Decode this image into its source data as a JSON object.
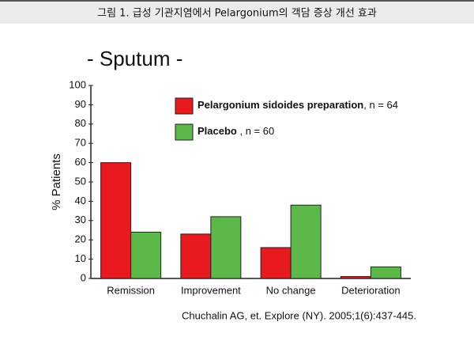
{
  "header": {
    "title": "그림 1. 급성 기관지염에서 Pelargonium의 객담 증상 개선 효과"
  },
  "chart_data": {
    "type": "bar",
    "title": "- Sputum -",
    "y_label": "% Patients",
    "categories": [
      "Remission",
      "Improvement",
      "No change",
      "Deterioration"
    ],
    "series": [
      {
        "name": "Pelargonium sidoides preparation",
        "note": ", n = 64",
        "color": "#e8191f",
        "values": [
          60,
          23,
          16,
          1
        ]
      },
      {
        "name": "Placebo",
        "note": " , n = 60",
        "color": "#5cb848",
        "values": [
          24,
          32,
          38,
          6
        ]
      }
    ],
    "ylim": [
      0,
      100
    ],
    "yticks": [
      0,
      10,
      20,
      30,
      40,
      50,
      60,
      70,
      80,
      90,
      100
    ],
    "grid": false
  },
  "citation": "Chuchalin AG, et. Explore (NY). 2005;1(6):437-445."
}
